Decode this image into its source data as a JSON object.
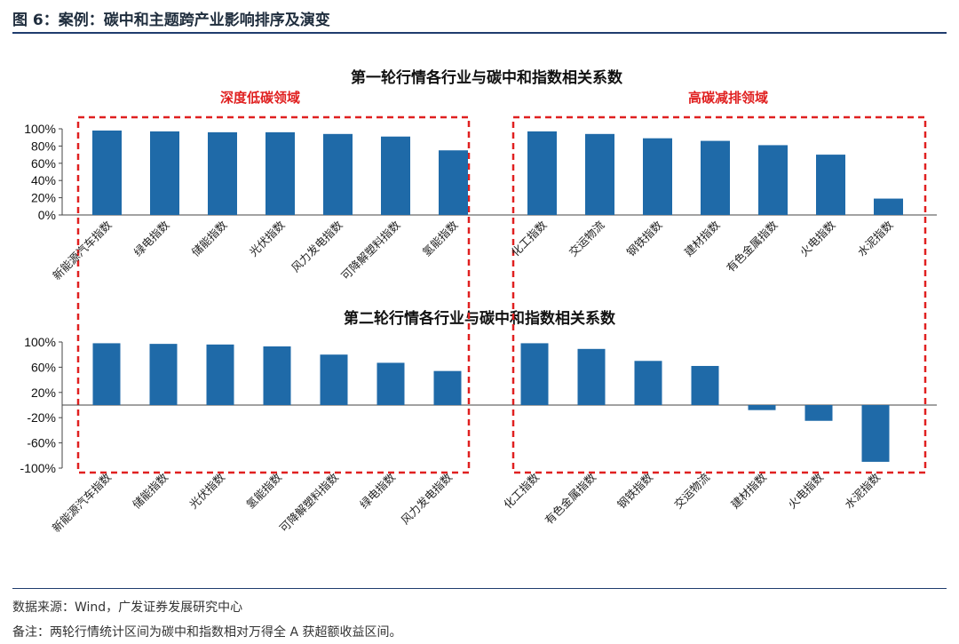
{
  "figure": {
    "title": "图 6：案例：碳中和主题跨产业影响排序及演变",
    "source": "数据来源：Wind，广发证券发展研究中心",
    "note": "备注：两轮行情统计区间为碳中和指数相对万得全 A 获超额收益区间。"
  },
  "zones": {
    "left": "深度低碳领域",
    "right": "高碳减排领域"
  },
  "colors": {
    "bar": "#1f6aa8",
    "zone_border": "#e02020",
    "rule": "#1f3c6e"
  },
  "chart_data": [
    {
      "type": "bar",
      "title": "第一轮行情各行业与碳中和指数相关系数",
      "ylim": [
        0,
        100
      ],
      "yticks": [
        "0%",
        "20%",
        "40%",
        "60%",
        "80%",
        "100%"
      ],
      "ytick_values": [
        0,
        20,
        40,
        60,
        80,
        100
      ],
      "groups": [
        {
          "categories": [
            "新能源汽车指数",
            "绿电指数",
            "储能指数",
            "光伏指数",
            "风力发电指数",
            "可降解塑料指数",
            "氢能指数"
          ],
          "values": [
            98,
            97,
            96,
            96,
            94,
            91,
            75
          ]
        },
        {
          "categories": [
            "化工指数",
            "交运物流",
            "钢铁指数",
            "建材指数",
            "有色金属指数",
            "火电指数",
            "水泥指数"
          ],
          "values": [
            97,
            94,
            89,
            86,
            81,
            70,
            19
          ]
        }
      ]
    },
    {
      "type": "bar",
      "title": "第二轮行情各行业与碳中和指数相关系数",
      "ylim": [
        -100,
        100
      ],
      "yticks": [
        "-100%",
        "-60%",
        "-20%",
        "20%",
        "60%",
        "100%"
      ],
      "ytick_values": [
        -100,
        -60,
        -20,
        20,
        60,
        100
      ],
      "groups": [
        {
          "categories": [
            "新能源汽车指数",
            "储能指数",
            "光伏指数",
            "氢能指数",
            "可降解塑料指数",
            "绿电指数",
            "风力发电指数"
          ],
          "values": [
            98,
            97,
            96,
            93,
            80,
            67,
            54
          ]
        },
        {
          "categories": [
            "化工指数",
            "有色金属指数",
            "钢铁指数",
            "交运物流",
            "建材指数",
            "火电指数",
            "水泥指数"
          ],
          "values": [
            98,
            89,
            70,
            62,
            -8,
            -25,
            -90
          ]
        }
      ]
    }
  ]
}
